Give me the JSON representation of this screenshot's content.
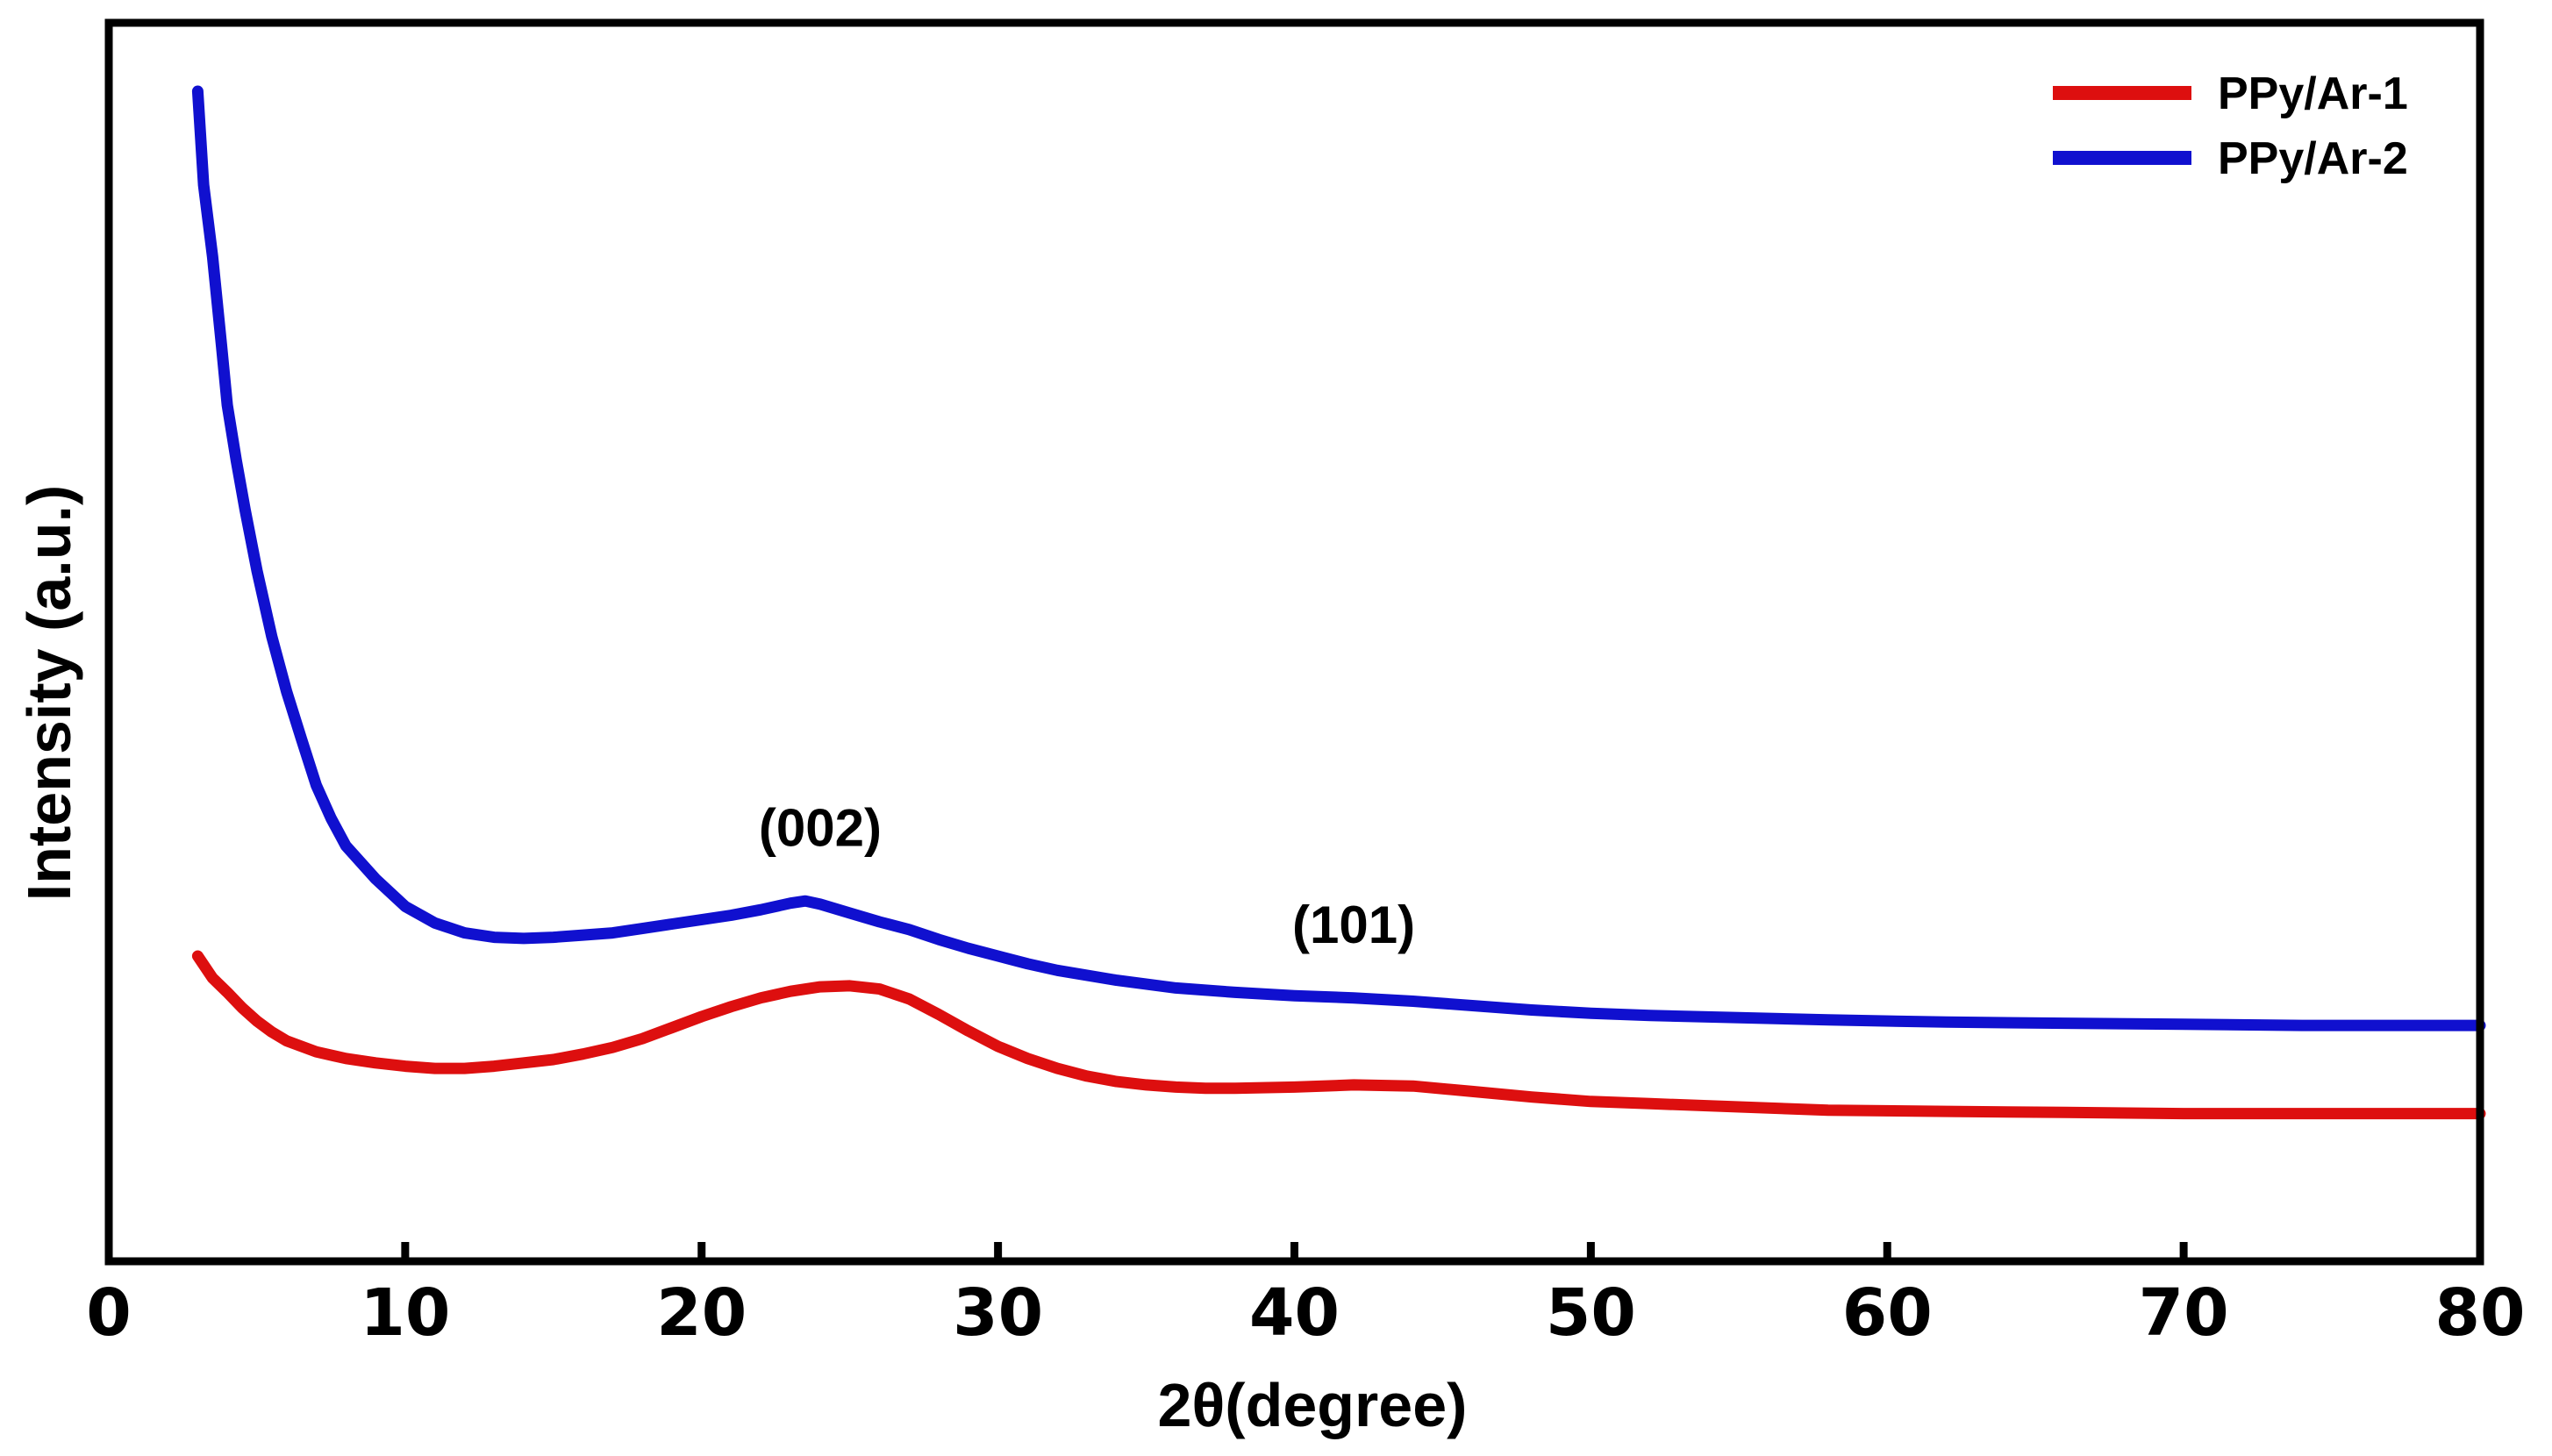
{
  "chart_data": {
    "type": "line",
    "title": "",
    "xlabel": "2θ(degree)",
    "ylabel": "Intensity (a.u.)",
    "xlim": [
      0,
      80
    ],
    "ylim": [
      0,
      100
    ],
    "xticks": [
      0,
      10,
      20,
      30,
      40,
      50,
      60,
      70,
      80
    ],
    "grid": false,
    "legend_position": "top-right",
    "series": [
      {
        "name": "PPy/Ar-1",
        "color": "#dd0f0f",
        "points": [
          [
            3.0,
            21.5
          ],
          [
            3.5,
            19.5
          ],
          [
            4.0,
            18.2
          ],
          [
            4.5,
            16.8
          ],
          [
            5.0,
            15.6
          ],
          [
            5.5,
            14.6
          ],
          [
            6.0,
            13.8
          ],
          [
            7.0,
            12.8
          ],
          [
            8.0,
            12.2
          ],
          [
            9.0,
            11.8
          ],
          [
            10.0,
            11.5
          ],
          [
            11.0,
            11.3
          ],
          [
            12.0,
            11.3
          ],
          [
            13.0,
            11.5
          ],
          [
            14.0,
            11.8
          ],
          [
            15.0,
            12.1
          ],
          [
            16.0,
            12.6
          ],
          [
            17.0,
            13.2
          ],
          [
            18.0,
            14.0
          ],
          [
            19.0,
            15.0
          ],
          [
            20.0,
            16.0
          ],
          [
            21.0,
            16.9
          ],
          [
            22.0,
            17.7
          ],
          [
            23.0,
            18.3
          ],
          [
            24.0,
            18.7
          ],
          [
            25.0,
            18.8
          ],
          [
            26.0,
            18.5
          ],
          [
            27.0,
            17.6
          ],
          [
            28.0,
            16.2
          ],
          [
            29.0,
            14.7
          ],
          [
            30.0,
            13.3
          ],
          [
            31.0,
            12.2
          ],
          [
            32.0,
            11.3
          ],
          [
            33.0,
            10.6
          ],
          [
            34.0,
            10.1
          ],
          [
            35.0,
            9.8
          ],
          [
            36.0,
            9.6
          ],
          [
            37.0,
            9.5
          ],
          [
            38.0,
            9.5
          ],
          [
            40.0,
            9.6
          ],
          [
            42.0,
            9.8
          ],
          [
            44.0,
            9.7
          ],
          [
            46.0,
            9.2
          ],
          [
            48.0,
            8.7
          ],
          [
            50.0,
            8.3
          ],
          [
            52.0,
            8.1
          ],
          [
            55.0,
            7.8
          ],
          [
            58.0,
            7.5
          ],
          [
            62.0,
            7.4
          ],
          [
            66.0,
            7.3
          ],
          [
            70.0,
            7.2
          ],
          [
            74.0,
            7.2
          ],
          [
            77.0,
            7.2
          ],
          [
            80.0,
            7.2
          ]
        ]
      },
      {
        "name": "PPy/Ar-2",
        "color": "#1010cf",
        "points": [
          [
            3.0,
            100.0
          ],
          [
            3.2,
            91.5
          ],
          [
            3.5,
            85.0
          ],
          [
            3.8,
            77.0
          ],
          [
            4.0,
            71.5
          ],
          [
            4.3,
            66.5
          ],
          [
            4.6,
            62.0
          ],
          [
            5.0,
            56.5
          ],
          [
            5.5,
            50.5
          ],
          [
            6.0,
            45.5
          ],
          [
            6.5,
            41.2
          ],
          [
            7.0,
            37.0
          ],
          [
            7.5,
            34.0
          ],
          [
            8.0,
            31.5
          ],
          [
            9.0,
            28.5
          ],
          [
            10.0,
            26.0
          ],
          [
            11.0,
            24.5
          ],
          [
            12.0,
            23.6
          ],
          [
            13.0,
            23.2
          ],
          [
            14.0,
            23.1
          ],
          [
            15.0,
            23.2
          ],
          [
            16.0,
            23.4
          ],
          [
            17.0,
            23.6
          ],
          [
            18.0,
            24.0
          ],
          [
            19.0,
            24.4
          ],
          [
            20.0,
            24.8
          ],
          [
            21.0,
            25.2
          ],
          [
            22.0,
            25.7
          ],
          [
            23.0,
            26.3
          ],
          [
            23.5,
            26.5
          ],
          [
            24.0,
            26.2
          ],
          [
            25.0,
            25.4
          ],
          [
            26.0,
            24.6
          ],
          [
            27.0,
            23.9
          ],
          [
            28.0,
            23.0
          ],
          [
            29.0,
            22.2
          ],
          [
            30.0,
            21.5
          ],
          [
            31.0,
            20.8
          ],
          [
            32.0,
            20.2
          ],
          [
            34.0,
            19.3
          ],
          [
            36.0,
            18.6
          ],
          [
            38.0,
            18.2
          ],
          [
            40.0,
            17.9
          ],
          [
            42.0,
            17.7
          ],
          [
            44.0,
            17.4
          ],
          [
            46.0,
            17.0
          ],
          [
            48.0,
            16.6
          ],
          [
            50.0,
            16.3
          ],
          [
            52.0,
            16.1
          ],
          [
            55.0,
            15.9
          ],
          [
            58.0,
            15.7
          ],
          [
            62.0,
            15.5
          ],
          [
            66.0,
            15.4
          ],
          [
            70.0,
            15.3
          ],
          [
            74.0,
            15.2
          ],
          [
            77.0,
            15.2
          ],
          [
            80.0,
            15.2
          ]
        ]
      }
    ],
    "annotations": [
      {
        "text": "(002)",
        "x": 24.0,
        "y": 31.5
      },
      {
        "text": "(101)",
        "x": 42.0,
        "y": 22.7
      }
    ]
  }
}
